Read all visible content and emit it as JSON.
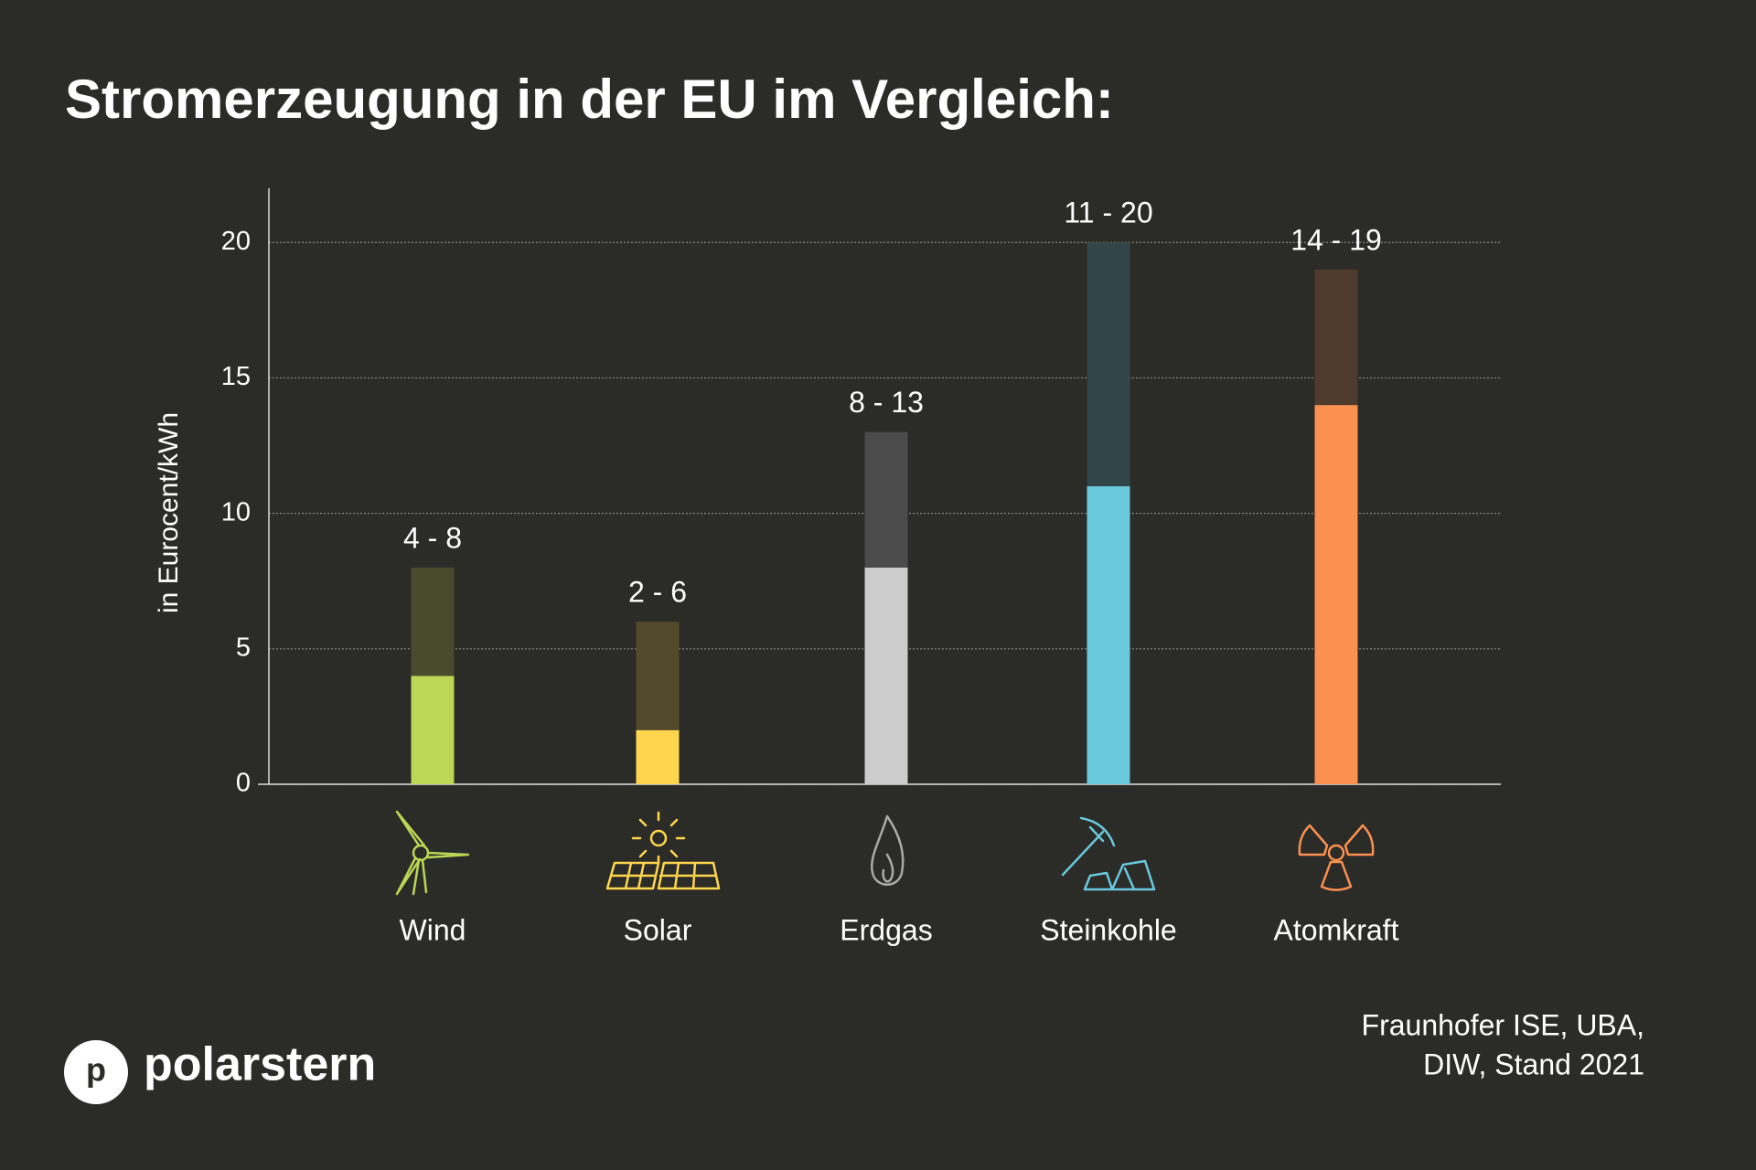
{
  "chart_data": {
    "type": "range_bar",
    "title": "Stromerzeugung in der EU im Vergleich:",
    "y_label": "in Eurocent/kWh",
    "categories": [
      "Wind",
      "Solar",
      "Erdgas",
      "Steinkohle",
      "Atomkraft"
    ],
    "values": [
      [
        4,
        8
      ],
      [
        2,
        6
      ],
      [
        8,
        13
      ],
      [
        11,
        20
      ],
      [
        14,
        19
      ]
    ],
    "value_labels": [
      "4 - 8",
      "2 - 6",
      "8 - 13",
      "11 - 20",
      "14 - 19"
    ],
    "colors": [
      "#bcd655",
      "#ffd64d",
      "#cccccc",
      "#6ac8dc",
      "#fa9150"
    ],
    "range_colors": [
      "#4a4a2e",
      "#534a2c",
      "#4b4b4b",
      "#324649",
      "#4f3b2e"
    ],
    "ylim": [
      0,
      22
    ],
    "yticks": [
      0,
      5,
      10,
      15,
      20
    ],
    "grid": true
  },
  "source": [
    "Fraunhofer ISE, UBA,",
    "DIW, Stand 2021"
  ],
  "logo": {
    "mark": "p",
    "name": "polarstern"
  }
}
